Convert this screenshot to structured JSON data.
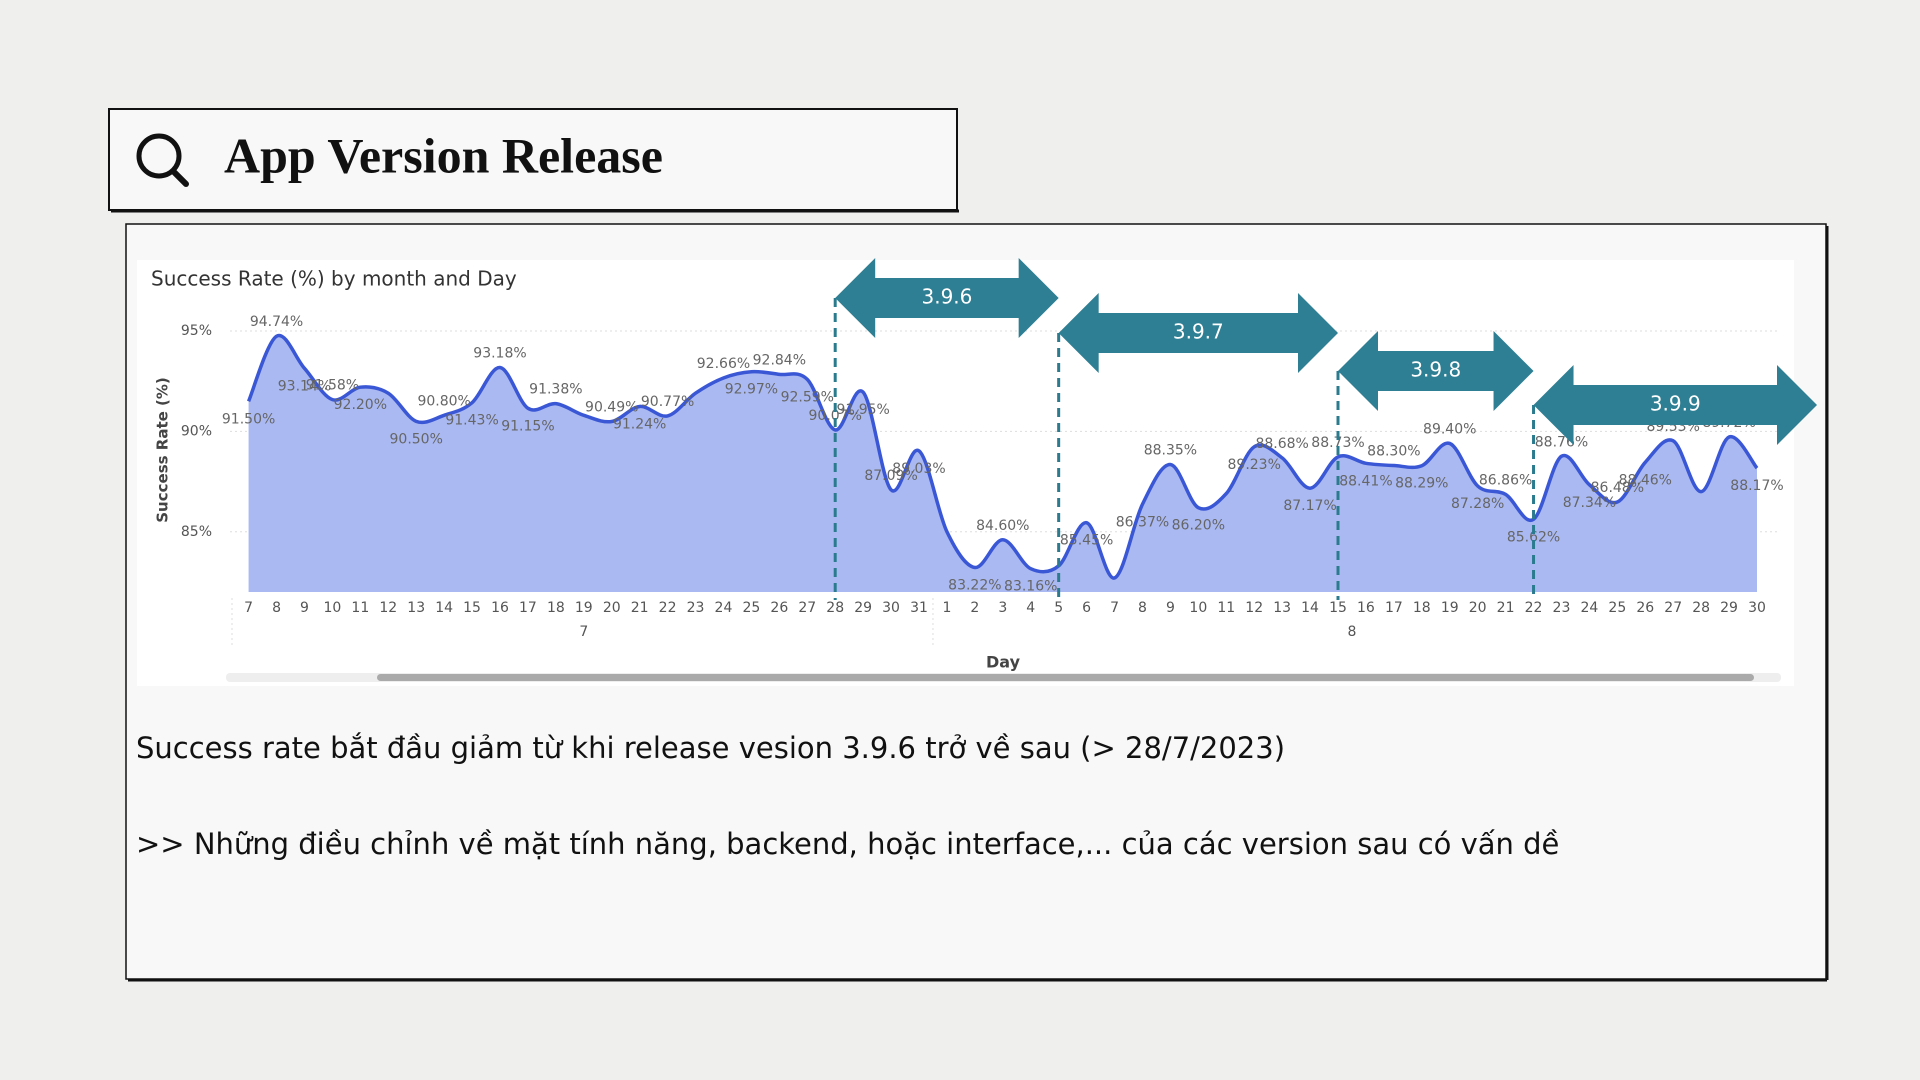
{
  "header": {
    "title": "App Version Release"
  },
  "chart_data": {
    "type": "area",
    "title": "Success Rate (%) by month and Day",
    "y_axis_label": "Success Rate (%)",
    "x_axis_label": "Day",
    "categories": [
      "7",
      "8",
      "9",
      "10",
      "11",
      "12",
      "13",
      "14",
      "15",
      "16",
      "17",
      "18",
      "19",
      "20",
      "21",
      "22",
      "23",
      "24",
      "25",
      "26",
      "27",
      "28",
      "29",
      "30",
      "31",
      "1",
      "2",
      "3",
      "4",
      "5",
      "6",
      "7",
      "8",
      "9",
      "10",
      "11",
      "12",
      "13",
      "14",
      "15",
      "16",
      "17",
      "18",
      "19",
      "20",
      "21",
      "22",
      "23",
      "24",
      "25",
      "26",
      "27",
      "28",
      "29",
      "30"
    ],
    "months": [
      "7",
      "8"
    ],
    "values": [
      91.5,
      94.74,
      93.14,
      91.58,
      92.2,
      91.9,
      90.5,
      90.8,
      91.43,
      93.18,
      91.15,
      91.38,
      90.8,
      90.49,
      91.24,
      90.77,
      91.9,
      92.66,
      92.97,
      92.84,
      92.59,
      90.07,
      91.95,
      87.09,
      89.03,
      85.0,
      83.22,
      84.6,
      83.16,
      83.3,
      85.45,
      82.7,
      86.37,
      88.35,
      86.2,
      86.9,
      89.23,
      88.68,
      87.17,
      88.73,
      88.41,
      88.3,
      88.29,
      89.4,
      87.28,
      86.86,
      85.62,
      88.76,
      87.34,
      86.48,
      88.46,
      89.53,
      87.0,
      89.72,
      88.17
    ],
    "value_labels": [
      "91.50%",
      "94.74%",
      "93.14%",
      "91.58%",
      "92.20%",
      null,
      "90.50%",
      "90.80%",
      "91.43%",
      "93.18%",
      "91.15%",
      "91.38%",
      null,
      "90.49%",
      "91.24%",
      "90.77%",
      null,
      "92.66%",
      "92.97%",
      "92.84%",
      "92.59%",
      "90.07%",
      "91.95%",
      "87.09%",
      "89.03%",
      null,
      "83.22%",
      "84.60%",
      "83.16%",
      null,
      "85.45%",
      null,
      "86.37%",
      "88.35%",
      "86.20%",
      null,
      "89.23%",
      "88.68%",
      "87.17%",
      "88.73%",
      "88.41%",
      "88.30%",
      "88.29%",
      "89.40%",
      "87.28%",
      "86.86%",
      "85.62%",
      "88.76%",
      "87.34%",
      "86.48%",
      "88.46%",
      "89.53%",
      null,
      "89.72%",
      "88.17%"
    ],
    "color": "#3a57d6",
    "fill_color": "#aab9f2",
    "ylim": [
      82,
      96
    ],
    "yticks": [
      {
        "value": 85,
        "label": "85%"
      },
      {
        "value": 90,
        "label": "90%"
      },
      {
        "value": 95,
        "label": "95%"
      }
    ],
    "grid": true,
    "releases": [
      "3.9.6",
      "3.9.7",
      "3.9.8",
      "3.9.9"
    ]
  },
  "notes": [
    "Success rate bắt đầu giảm từ khi release vesion 3.9.6 trở về sau (> 28/7/2023)",
    ">> Những điều chỉnh về mặt tính năng, backend, hoặc interface,... của các version sau có vấn dề"
  ]
}
